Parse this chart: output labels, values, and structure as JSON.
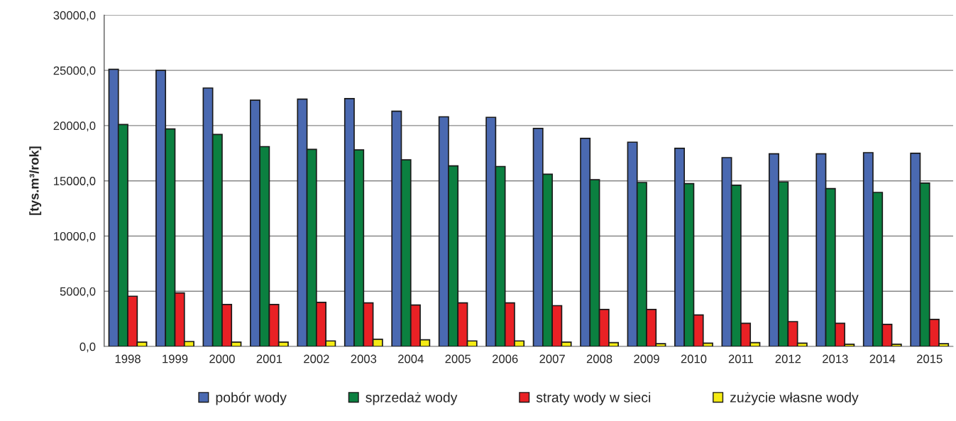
{
  "chart_data": {
    "type": "bar",
    "ylabel": "[tys.m³/rok]",
    "categories": [
      "1998",
      "1999",
      "2000",
      "2001",
      "2002",
      "2003",
      "2004",
      "2005",
      "2006",
      "2007",
      "2008",
      "2009",
      "2010",
      "2011",
      "2012",
      "2013",
      "2014",
      "2015"
    ],
    "series": [
      {
        "name": "pobór wody",
        "color": "#4a69b1",
        "values": [
          25100,
          25000,
          23400,
          22300,
          22400,
          22450,
          21300,
          20800,
          20750,
          19750,
          18850,
          18500,
          17950,
          17100,
          17450,
          17450,
          17550,
          17500
        ]
      },
      {
        "name": "sprzedaż wody",
        "color": "#0b8040",
        "values": [
          20100,
          19700,
          19200,
          18100,
          17850,
          17800,
          16900,
          16350,
          16300,
          15600,
          15100,
          14850,
          14750,
          14600,
          14900,
          14300,
          13950,
          14800
        ]
      },
      {
        "name": "straty wody w sieci",
        "color": "#e92125",
        "values": [
          4550,
          4850,
          3800,
          3800,
          4000,
          3950,
          3750,
          3950,
          3950,
          3700,
          3350,
          3350,
          2850,
          2100,
          2250,
          2100,
          2000,
          2450
        ]
      },
      {
        "name": "zużycie własne wody",
        "color": "#f5eb14",
        "values": [
          400,
          450,
          400,
          400,
          500,
          650,
          600,
          500,
          500,
          400,
          350,
          250,
          300,
          350,
          300,
          200,
          200,
          250
        ]
      }
    ],
    "ylim": [
      0,
      30000
    ],
    "yticks": [
      {
        "value": 0,
        "label": "0,0"
      },
      {
        "value": 5000,
        "label": "5000,0"
      },
      {
        "value": 10000,
        "label": "10000,0"
      },
      {
        "value": 15000,
        "label": "15000,0"
      },
      {
        "value": 20000,
        "label": "20000,0"
      },
      {
        "value": 25000,
        "label": "25000,0"
      },
      {
        "value": 30000,
        "label": "30000,0"
      }
    ],
    "grid": "y",
    "legend": "bottom"
  }
}
